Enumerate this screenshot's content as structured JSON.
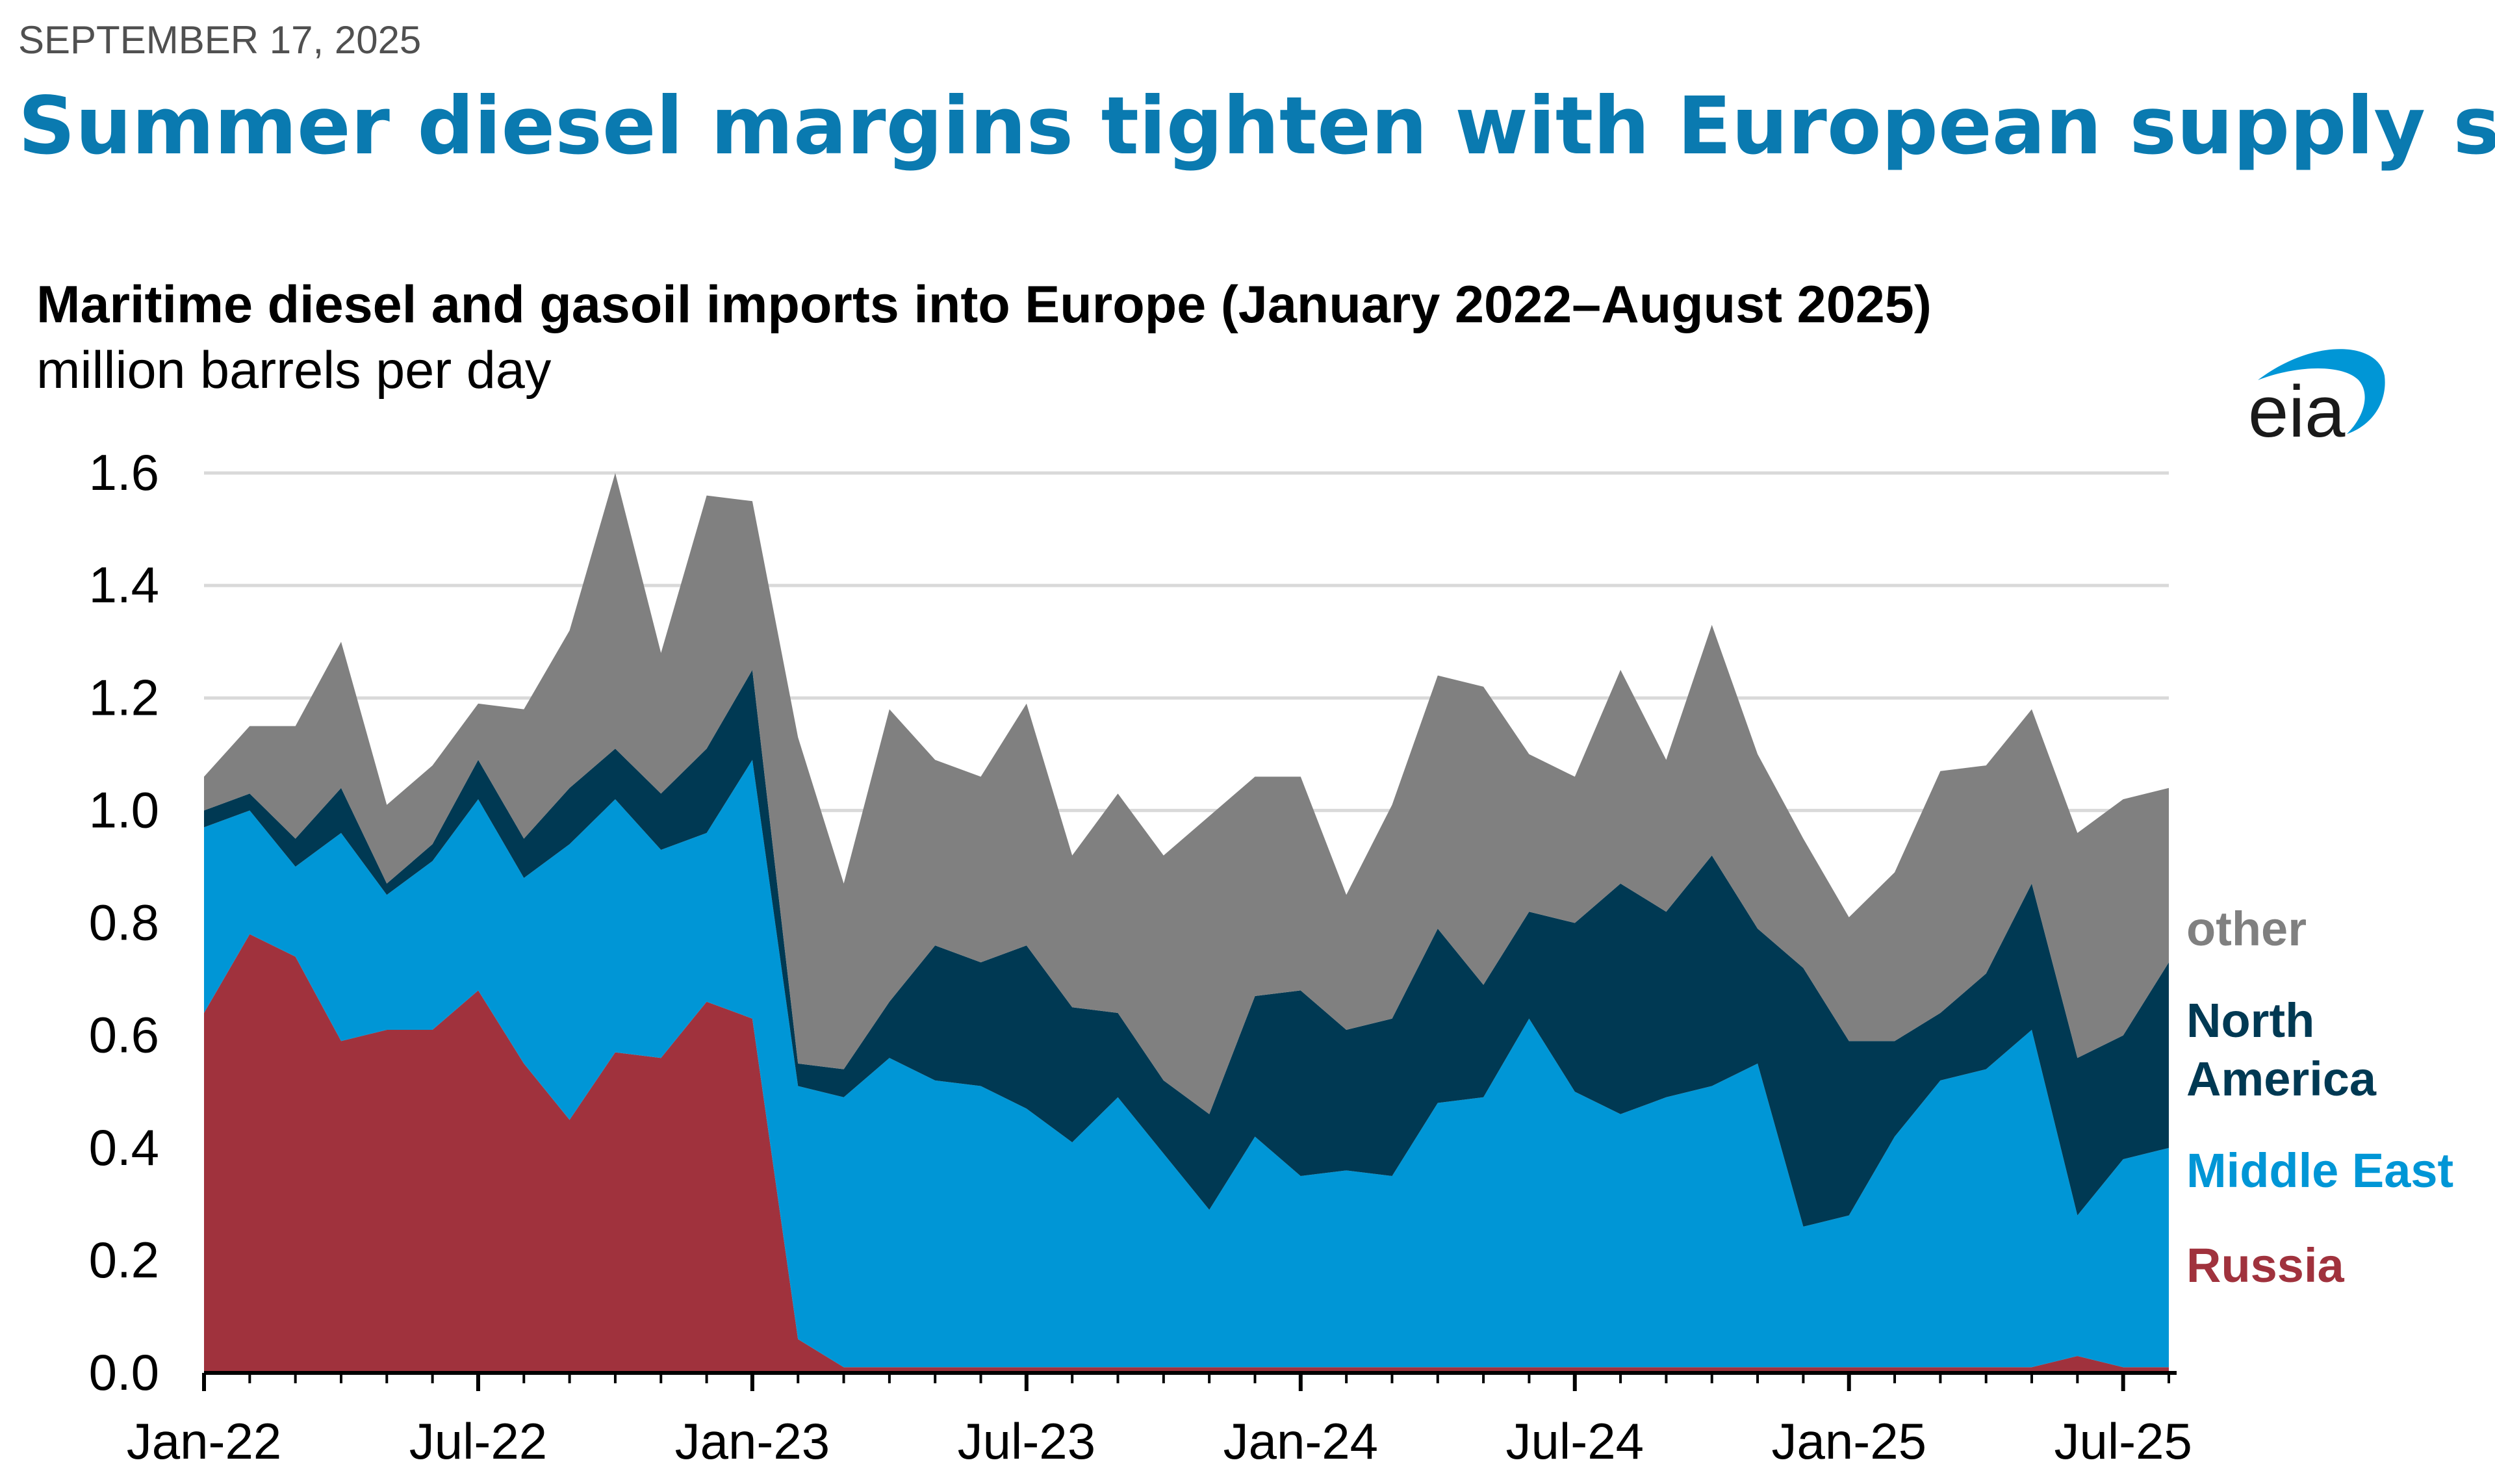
{
  "header": {
    "date": "SEPTEMBER 17, 2025",
    "headline": "Summer diesel margins tighten with European supply shift"
  },
  "logo": {
    "text": "eia",
    "icon": "eia-logo-swoosh",
    "color": "#0096d6"
  },
  "colors": {
    "date": "#505050",
    "headline": "#0a7ab0",
    "grid": "#d9d9d9",
    "axis": "#000000",
    "Russia": "#a0323d",
    "Middle East": "#0096d6",
    "North America": "#003953",
    "other": "#808080"
  },
  "chart_data": {
    "type": "area",
    "stacked": true,
    "title": "Maritime diesel and gasoil imports into Europe (January 2022–August 2025)",
    "subtitle": "million barrels per day",
    "ylim": [
      0,
      1.6
    ],
    "yticks": [
      "0.0",
      "0.2",
      "0.4",
      "0.6",
      "0.8",
      "1.0",
      "1.2",
      "1.4",
      "1.6"
    ],
    "xtick_labels": [
      "Jan-22",
      "Jul-22",
      "Jan-23",
      "Jul-23",
      "Jan-24",
      "Jul-24",
      "Jan-25",
      "Jul-25"
    ],
    "grid": "horizontal",
    "legend": "right, inline labels",
    "x": [
      "2022-01",
      "2022-02",
      "2022-03",
      "2022-04",
      "2022-05",
      "2022-06",
      "2022-07",
      "2022-08",
      "2022-09",
      "2022-10",
      "2022-11",
      "2022-12",
      "2023-01",
      "2023-02",
      "2023-03",
      "2023-04",
      "2023-05",
      "2023-06",
      "2023-07",
      "2023-08",
      "2023-09",
      "2023-10",
      "2023-11",
      "2023-12",
      "2024-01",
      "2024-02",
      "2024-03",
      "2024-04",
      "2024-05",
      "2024-06",
      "2024-07",
      "2024-08",
      "2024-09",
      "2024-10",
      "2024-11",
      "2024-12",
      "2025-01",
      "2025-02",
      "2025-03",
      "2025-04",
      "2025-05",
      "2025-06",
      "2025-07",
      "2025-08"
    ],
    "series": [
      {
        "name": "Russia",
        "values": [
          0.64,
          0.78,
          0.74,
          0.59,
          0.61,
          0.61,
          0.68,
          0.55,
          0.45,
          0.57,
          0.56,
          0.66,
          0.63,
          0.06,
          0.01,
          0.01,
          0.01,
          0.01,
          0.01,
          0.01,
          0.01,
          0.01,
          0.01,
          0.01,
          0.01,
          0.01,
          0.01,
          0.01,
          0.01,
          0.01,
          0.01,
          0.01,
          0.01,
          0.01,
          0.01,
          0.01,
          0.01,
          0.01,
          0.01,
          0.01,
          0.01,
          0.03,
          0.01,
          0.01
        ]
      },
      {
        "name": "Middle East",
        "values": [
          0.33,
          0.22,
          0.16,
          0.37,
          0.24,
          0.3,
          0.34,
          0.33,
          0.49,
          0.45,
          0.37,
          0.3,
          0.46,
          0.45,
          0.48,
          0.55,
          0.51,
          0.5,
          0.46,
          0.4,
          0.48,
          0.38,
          0.28,
          0.41,
          0.34,
          0.35,
          0.34,
          0.47,
          0.48,
          0.62,
          0.49,
          0.45,
          0.48,
          0.5,
          0.54,
          0.25,
          0.27,
          0.41,
          0.51,
          0.53,
          0.6,
          0.25,
          0.37,
          0.39
        ]
      },
      {
        "name": "North America",
        "values": [
          0.03,
          0.03,
          0.05,
          0.08,
          0.02,
          0.03,
          0.07,
          0.07,
          0.1,
          0.09,
          0.1,
          0.15,
          0.16,
          0.04,
          0.05,
          0.1,
          0.24,
          0.22,
          0.29,
          0.24,
          0.15,
          0.13,
          0.17,
          0.25,
          0.33,
          0.25,
          0.28,
          0.31,
          0.2,
          0.19,
          0.3,
          0.41,
          0.33,
          0.41,
          0.24,
          0.46,
          0.31,
          0.17,
          0.12,
          0.17,
          0.26,
          0.28,
          0.22,
          0.33
        ]
      },
      {
        "name": "other",
        "values": [
          0.06,
          0.12,
          0.2,
          0.26,
          0.14,
          0.14,
          0.1,
          0.23,
          0.28,
          0.49,
          0.25,
          0.45,
          0.3,
          0.58,
          0.33,
          0.52,
          0.33,
          0.33,
          0.43,
          0.27,
          0.39,
          0.4,
          0.53,
          0.39,
          0.38,
          0.24,
          0.38,
          0.45,
          0.53,
          0.28,
          0.26,
          0.38,
          0.27,
          0.41,
          0.31,
          0.23,
          0.22,
          0.3,
          0.43,
          0.37,
          0.31,
          0.4,
          0.42,
          0.31
        ]
      }
    ]
  }
}
